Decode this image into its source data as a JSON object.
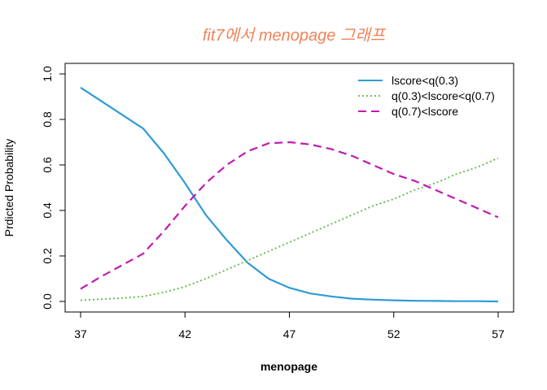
{
  "chart_data": {
    "type": "line",
    "title": "fit7에서 menopage 그래프",
    "title_color": "#F0845A",
    "xlabel": "menopage",
    "ylabel": "Prdicted  Probability",
    "xlim": [
      37,
      57
    ],
    "ylim": [
      0,
      1
    ],
    "xticks": [
      37,
      42,
      47,
      52,
      57
    ],
    "yticks": [
      0.0,
      0.2,
      0.4,
      0.6,
      0.8,
      1.0
    ],
    "ytick_labels": [
      "0.0",
      "0.2",
      "0.4",
      "0.6",
      "0.8",
      "1.0"
    ],
    "grid": false,
    "legend_position": "top-right",
    "x": [
      37,
      38,
      39,
      40,
      41,
      42,
      43,
      44,
      45,
      46,
      47,
      48,
      49,
      50,
      51,
      52,
      53,
      54,
      55,
      56,
      57
    ],
    "series": [
      {
        "name": "lscore<q(0.3)",
        "color": "#2E9BD6",
        "dash": "solid",
        "values": [
          0.94,
          0.88,
          0.82,
          0.76,
          0.65,
          0.52,
          0.38,
          0.27,
          0.17,
          0.1,
          0.06,
          0.035,
          0.022,
          0.012,
          0.008,
          0.005,
          0.003,
          0.002,
          0.001,
          0.001,
          0.0
        ]
      },
      {
        "name": "q(0.3)<lscore<q(0.7)",
        "color": "#5DB848",
        "dash": "dotted",
        "values": [
          0.005,
          0.01,
          0.015,
          0.022,
          0.04,
          0.065,
          0.1,
          0.14,
          0.18,
          0.22,
          0.26,
          0.3,
          0.34,
          0.38,
          0.42,
          0.45,
          0.49,
          0.52,
          0.56,
          0.59,
          0.63
        ]
      },
      {
        "name": "q(0.7)<lscore",
        "color": "#C219B4",
        "dash": "dashed",
        "values": [
          0.055,
          0.11,
          0.16,
          0.21,
          0.31,
          0.42,
          0.52,
          0.6,
          0.66,
          0.695,
          0.7,
          0.69,
          0.67,
          0.64,
          0.6,
          0.56,
          0.53,
          0.49,
          0.45,
          0.41,
          0.37
        ]
      }
    ]
  }
}
